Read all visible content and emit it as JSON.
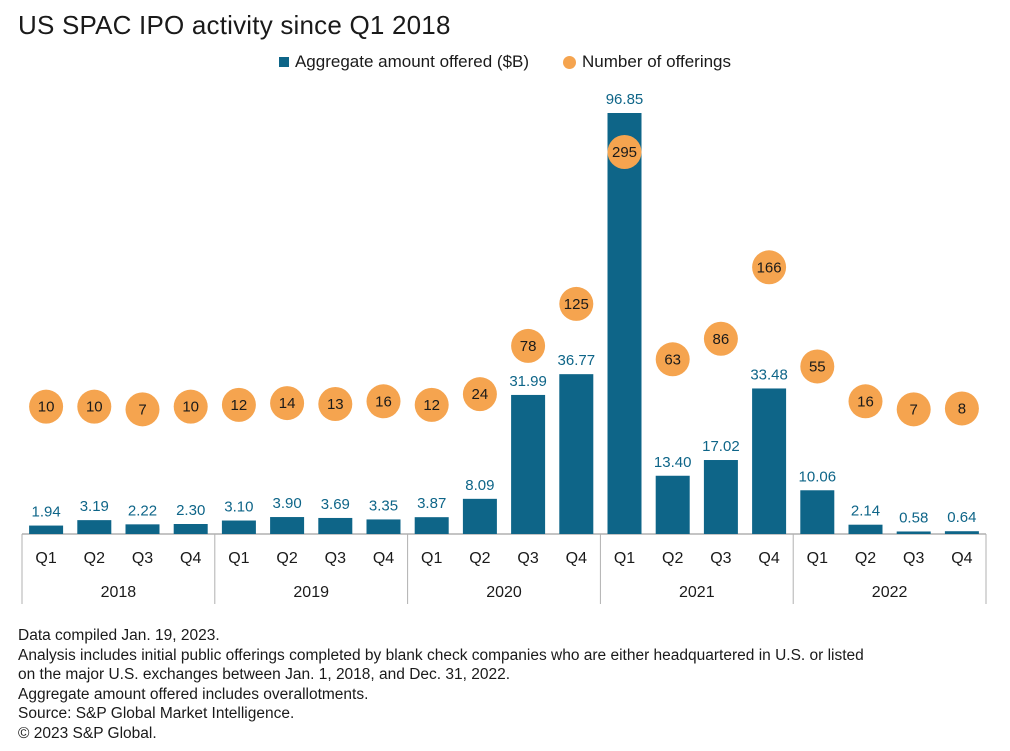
{
  "chart_data": {
    "type": "bar",
    "title": "US SPAC IPO activity since Q1 2018",
    "legend_position": "top-center",
    "categories": [
      "Q1",
      "Q2",
      "Q3",
      "Q4",
      "Q1",
      "Q2",
      "Q3",
      "Q4",
      "Q1",
      "Q2",
      "Q3",
      "Q4",
      "Q1",
      "Q2",
      "Q3",
      "Q4",
      "Q1",
      "Q2",
      "Q3",
      "Q4"
    ],
    "years": [
      "2018",
      "2019",
      "2020",
      "2021",
      "2022"
    ],
    "series": [
      {
        "name": "Aggregate amount offered ($B)",
        "kind": "bar",
        "color": "#0e6588",
        "values": [
          1.94,
          3.19,
          2.22,
          2.3,
          3.1,
          3.9,
          3.69,
          3.35,
          3.87,
          8.09,
          31.99,
          36.77,
          96.85,
          13.4,
          17.02,
          33.48,
          10.06,
          2.14,
          0.58,
          0.64
        ],
        "labels": [
          "1.94",
          "3.19",
          "2.22",
          "2.30",
          "3.10",
          "3.90",
          "3.69",
          "3.35",
          "3.87",
          "8.09",
          "31.99",
          "36.77",
          "96.85",
          "13.40",
          "17.02",
          "33.48",
          "10.06",
          "2.14",
          "0.58",
          "0.64"
        ]
      },
      {
        "name": "Number of offerings",
        "kind": "dot",
        "color": "#f5a44f",
        "values": [
          10,
          10,
          7,
          10,
          12,
          14,
          13,
          16,
          12,
          24,
          78,
          125,
          295,
          63,
          86,
          166,
          55,
          16,
          7,
          8
        ],
        "labels": [
          "10",
          "10",
          "7",
          "10",
          "12",
          "14",
          "13",
          "16",
          "12",
          "24",
          "78",
          "125",
          "295",
          "63",
          "86",
          "166",
          "55",
          "16",
          "7",
          "8"
        ]
      }
    ],
    "grid": false
  },
  "notes": [
    "Data compiled Jan. 19, 2023.",
    "Analysis includes initial public offerings completed by blank check companies who are either headquartered in U.S. or listed",
    "on the major U.S. exchanges between Jan. 1, 2018, and Dec. 31, 2022.",
    "Aggregate amount offered includes overallotments.",
    "Source: S&P Global Market Intelligence.",
    "© 2023 S&P Global."
  ]
}
